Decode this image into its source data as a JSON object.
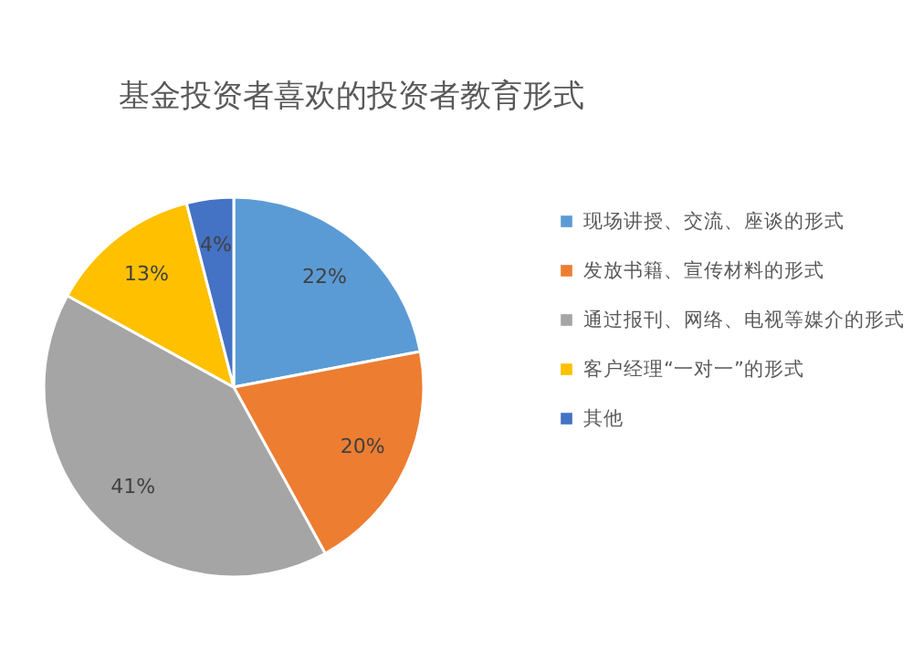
{
  "chart_data": {
    "type": "pie",
    "title": "基金投资者喜欢的投资者教育形式",
    "categories": [
      "现场讲授、交流、座谈的形式",
      "发放书籍、宣传材料的形式",
      "通过报刊、网络、电视等媒介的形式",
      "客户经理“一对一”的形式",
      "其他"
    ],
    "values": [
      22,
      20,
      41,
      13,
      4
    ],
    "colors": [
      "#5b9bd5",
      "#ed7d31",
      "#a5a5a5",
      "#ffc000",
      "#4472c4"
    ],
    "value_labels": [
      "22%",
      "20%",
      "41%",
      "13%",
      "4%"
    ],
    "legend": "right"
  }
}
